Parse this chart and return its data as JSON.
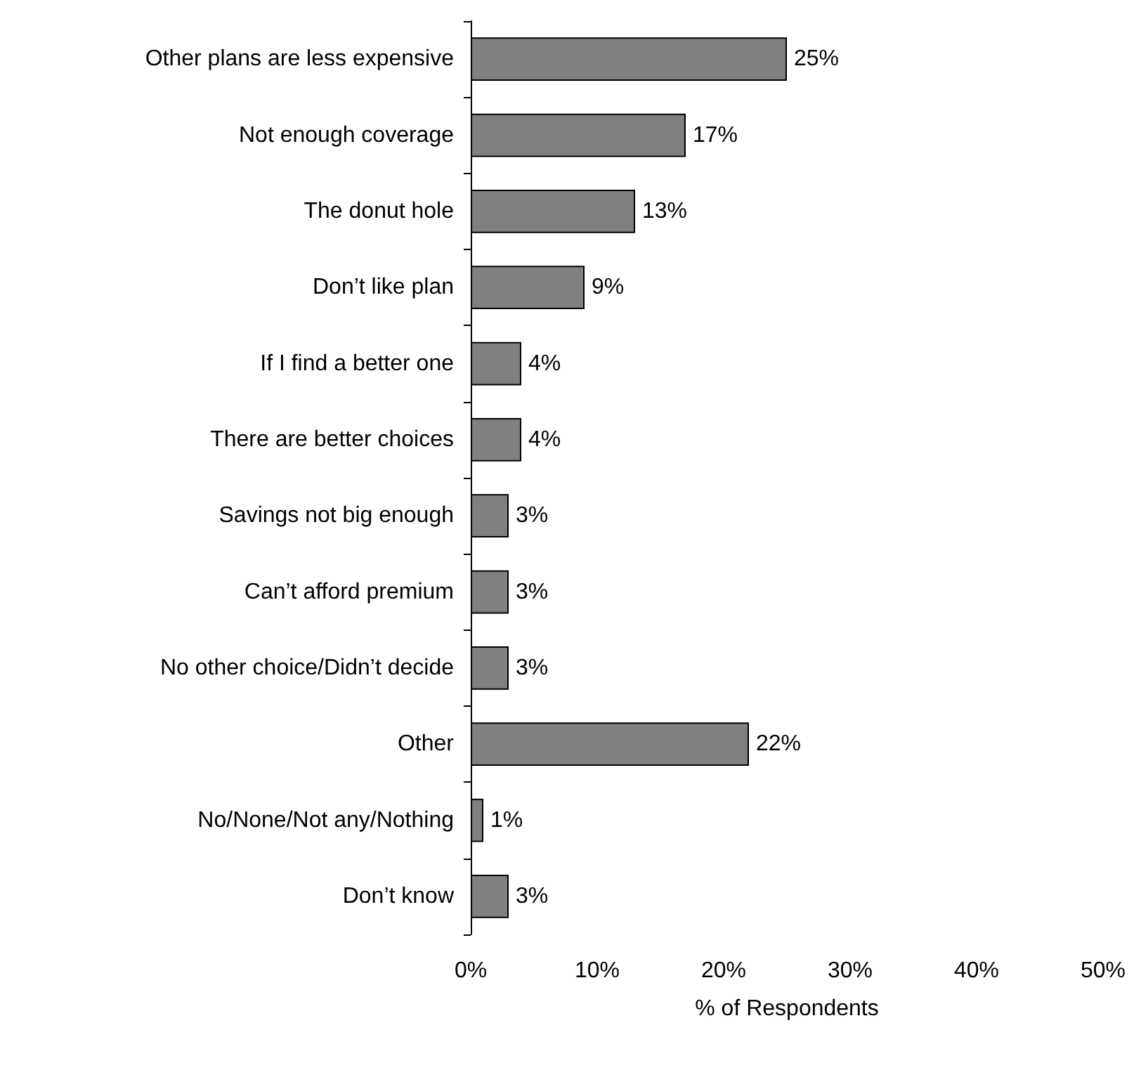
{
  "chart_data": {
    "type": "bar",
    "orientation": "horizontal",
    "xlabel": "% of Respondents",
    "categories": [
      "Other plans are less expensive",
      "Not enough coverage",
      "The donut hole",
      "Don’t like plan",
      "If I find a better one",
      "There are better choices",
      "Savings not big enough",
      "Can’t afford premium",
      "No other choice/Didn’t decide",
      "Other",
      "No/None/Not any/Nothing",
      "Don’t know"
    ],
    "values": [
      25,
      17,
      13,
      9,
      4,
      4,
      3,
      3,
      3,
      22,
      1,
      3
    ],
    "value_labels": [
      "25%",
      "17%",
      "13%",
      "9%",
      "4%",
      "4%",
      "3%",
      "3%",
      "3%",
      "22%",
      "1%",
      "3%"
    ],
    "color": "#808080",
    "xlim": [
      0,
      50
    ],
    "xticks": [
      {
        "value": 0,
        "label": "0%"
      },
      {
        "value": 10,
        "label": "10%"
      },
      {
        "value": 20,
        "label": "20%"
      },
      {
        "value": 30,
        "label": "30%"
      },
      {
        "value": 40,
        "label": "40%"
      },
      {
        "value": 50,
        "label": "50%"
      }
    ],
    "grid": false
  }
}
